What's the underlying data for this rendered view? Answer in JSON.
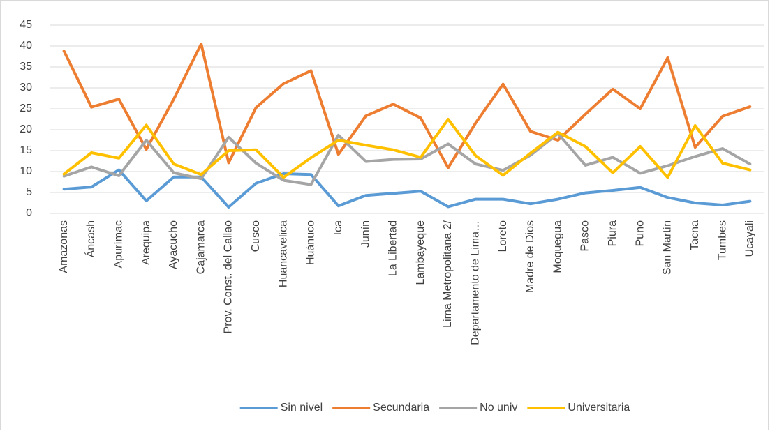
{
  "chart_data": {
    "type": "line",
    "categories": [
      "Amazonas",
      "Áncash",
      "Apurímac",
      "Arequipa",
      "Ayacucho",
      "Cajamarca",
      "Prov. Const. del Callao",
      "Cusco",
      "Huancavelica",
      "Huánuco",
      "Ica",
      "Junín",
      "La Libertad",
      "Lambayeque",
      "Lima Metropolitana 2/",
      "Departamento de Lima…",
      "Loreto",
      "Madre de Dios",
      "Moquegua",
      "Pasco",
      "Piura",
      "Puno",
      "San Martín",
      "Tacna",
      "Tumbes",
      "Ucayali"
    ],
    "series": [
      {
        "name": "Sin nivel",
        "color": "#5b9bd5",
        "values": [
          5.8,
          6.3,
          10.4,
          3.0,
          8.7,
          8.7,
          1.5,
          7.2,
          9.5,
          9.3,
          1.8,
          4.3,
          4.8,
          5.3,
          1.6,
          3.4,
          3.4,
          2.3,
          3.4,
          4.9,
          5.5,
          6.2,
          3.8,
          2.5,
          2.0,
          2.9
        ]
      },
      {
        "name": "Secundaria",
        "color": "#ed7d31",
        "values": [
          38.8,
          25.4,
          27.3,
          15.3,
          27.3,
          40.5,
          12.1,
          25.3,
          31.0,
          34.1,
          14.1,
          23.3,
          26.1,
          22.8,
          10.9,
          21.6,
          30.9,
          19.6,
          17.5,
          23.7,
          29.7,
          25.0,
          37.2,
          15.8,
          23.2,
          25.5
        ]
      },
      {
        "name": "No univ",
        "color": "#a5a5a5",
        "values": [
          8.9,
          11.1,
          9.0,
          17.5,
          9.7,
          8.3,
          18.2,
          12.0,
          7.9,
          6.9,
          18.7,
          12.4,
          12.9,
          13.0,
          16.6,
          11.8,
          10.3,
          13.9,
          19.1,
          11.5,
          13.4,
          9.6,
          11.4,
          13.6,
          15.5,
          11.8
        ]
      },
      {
        "name": "Universitaria",
        "color": "#ffc000",
        "values": [
          9.4,
          14.5,
          13.2,
          21.1,
          11.8,
          9.3,
          15.0,
          15.2,
          8.6,
          13.3,
          17.5,
          16.3,
          15.2,
          13.4,
          22.5,
          13.8,
          9.1,
          14.4,
          19.4,
          16.0,
          9.7,
          16.0,
          8.6,
          21.0,
          12.0,
          10.4
        ]
      }
    ],
    "ylim": [
      0,
      45
    ],
    "yticks": [
      0,
      5,
      10,
      15,
      20,
      25,
      30,
      35,
      40,
      45
    ],
    "grid": true,
    "legend": "bottom"
  }
}
